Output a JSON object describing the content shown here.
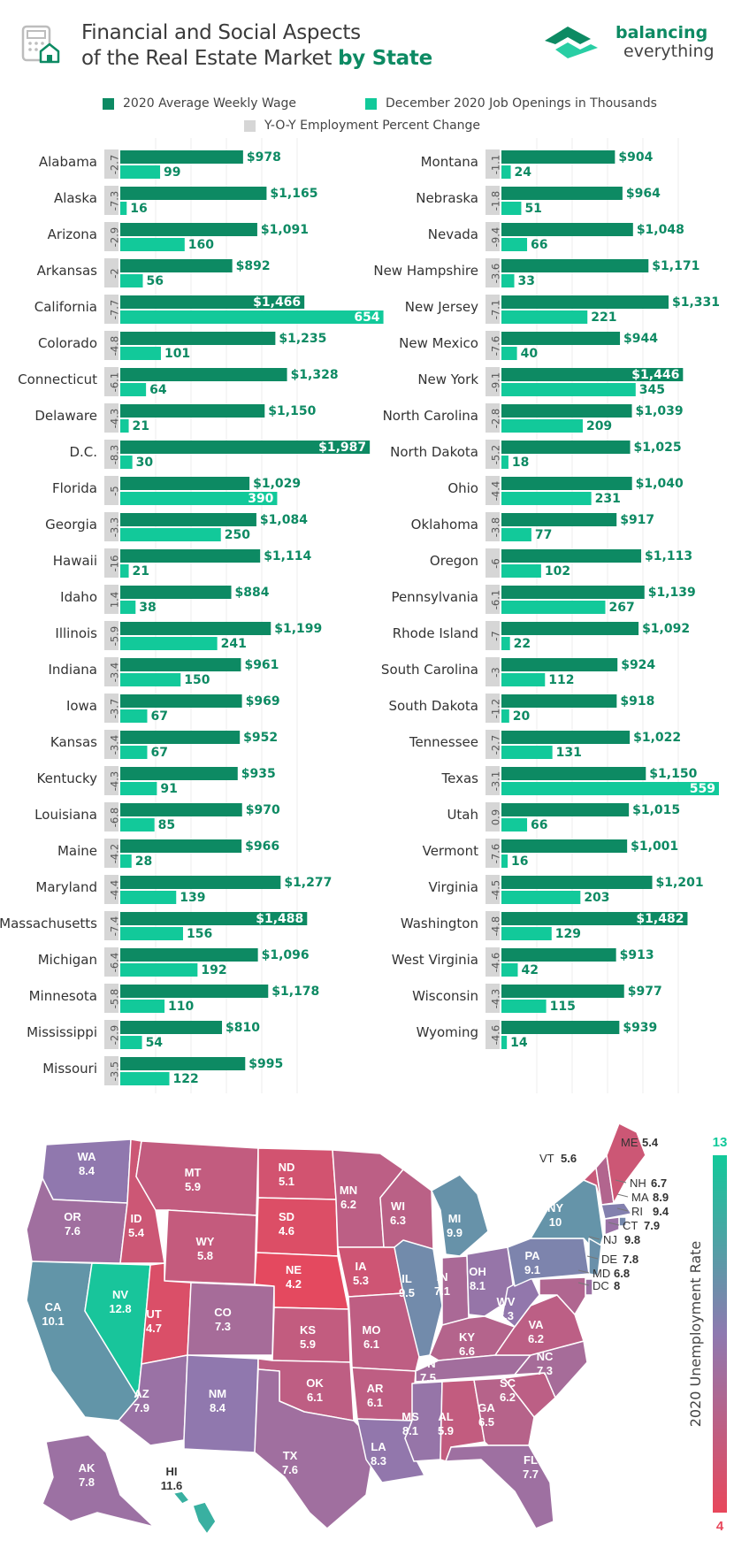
{
  "header": {
    "title_line1": "Financial and Social Aspects",
    "title_line2": "of the Real Estate Market ",
    "title_bold": "by State",
    "logo_line1": "balancing",
    "logo_line2": "everything"
  },
  "legend": [
    {
      "label": "2020 Average Weekly Wage",
      "color": "#0d8a63"
    },
    {
      "label": "December 2020 Job Openings in Thousands",
      "color": "#12c99a"
    },
    {
      "label": "Y-O-Y Employment Percent Change",
      "color": "#d6d6d6"
    }
  ],
  "colors": {
    "wage": "#0d8a63",
    "jobs": "#12c99a",
    "yoy_bg": "#d6d6d6",
    "wage_text": "#0d8a63",
    "jobs_text": "#0d8a63"
  },
  "chart_data": [
    {
      "type": "bar",
      "title": "Financial and Social Aspects of the Real Estate Market by State (left column)",
      "categories": [
        "Alabama",
        "Alaska",
        "Arizona",
        "Arkansas",
        "California",
        "Colorado",
        "Connecticut",
        "Delaware",
        "D.C.",
        "Florida",
        "Georgia",
        "Hawaii",
        "Idaho",
        "Illinois",
        "Indiana",
        "Iowa",
        "Kansas",
        "Kentucky",
        "Louisiana",
        "Maine",
        "Maryland",
        "Massachusetts",
        "Michigan",
        "Minnesota",
        "Mississippi",
        "Missouri"
      ],
      "series": [
        {
          "name": "2020 Average Weekly Wage",
          "values": [
            978,
            1165,
            1091,
            892,
            1466,
            1235,
            1328,
            1150,
            1987,
            1029,
            1084,
            1114,
            884,
            1199,
            961,
            969,
            952,
            935,
            970,
            966,
            1277,
            1488,
            1096,
            1178,
            810,
            995
          ],
          "labels": [
            "$978",
            "$1,165",
            "$1,091",
            "$892",
            "$1,466",
            "$1,235",
            "$1,328",
            "$1,150",
            "$1,987",
            "$1,029",
            "$1,084",
            "$1,114",
            "$884",
            "$1,199",
            "$961",
            "$969",
            "$952",
            "$935",
            "$970",
            "$966",
            "$1,277",
            "$1,488",
            "$1,096",
            "$1,178",
            "$810",
            "$995"
          ]
        },
        {
          "name": "December 2020 Job Openings in Thousands",
          "values": [
            99,
            16,
            160,
            56,
            654,
            101,
            64,
            21,
            30,
            390,
            250,
            21,
            38,
            241,
            150,
            67,
            67,
            91,
            85,
            28,
            139,
            156,
            192,
            110,
            54,
            122
          ],
          "labels": [
            "99",
            "16",
            "160",
            "56",
            "654",
            "101",
            "64",
            "21",
            "30",
            "390",
            "250",
            "21",
            "38",
            "241",
            "150",
            "67",
            "67",
            "91",
            "85",
            "28",
            "139",
            "156",
            "192",
            "110",
            "54",
            "122"
          ]
        },
        {
          "name": "Y-O-Y Employment Percent Change",
          "values": [
            -2.7,
            -7.3,
            -2.9,
            -2,
            -7.7,
            -4.8,
            -6.1,
            -4.3,
            -8.3,
            -5,
            -3.3,
            -16,
            1.4,
            -5.9,
            -3.4,
            -3.7,
            -3.4,
            -4.3,
            -6.8,
            -4.2,
            -4.4,
            -7.4,
            -6.4,
            -5.8,
            -2.9,
            -3.5
          ],
          "labels": [
            "-2.7",
            "-7.3",
            "-2.9",
            "-2",
            "-7.7",
            "-4.8",
            "-6.1",
            "-4.3",
            "-8.3",
            "-5",
            "-3.3",
            "-16",
            "1.4",
            "-5.9",
            "-3.4",
            "-3.7",
            "-3.4",
            "-4.3",
            "-6.8",
            "-4.2",
            "-4.4",
            "-7.4",
            "-6.4",
            "-5.8",
            "-2.9",
            "-3.5"
          ]
        }
      ]
    },
    {
      "type": "bar",
      "title": "Financial and Social Aspects of the Real Estate Market by State (right column)",
      "categories": [
        "Montana",
        "Nebraska",
        "Nevada",
        "New Hampshire",
        "New Jersey",
        "New Mexico",
        "New York",
        "North Carolina",
        "North Dakota",
        "Ohio",
        "Oklahoma",
        "Oregon",
        "Pennsylvania",
        "Rhode Island",
        "South Carolina",
        "South Dakota",
        "Tennessee",
        "Texas",
        "Utah",
        "Vermont",
        "Virginia",
        "Washington",
        "West Virginia",
        "Wisconsin",
        "Wyoming"
      ],
      "series": [
        {
          "name": "2020 Average Weekly Wage",
          "values": [
            904,
            964,
            1048,
            1171,
            1331,
            944,
            1446,
            1039,
            1025,
            1040,
            917,
            1113,
            1139,
            1092,
            924,
            918,
            1022,
            1150,
            1015,
            1001,
            1201,
            1482,
            913,
            977,
            939
          ],
          "labels": [
            "$904",
            "$964",
            "$1,048",
            "$1,171",
            "$1,331",
            "$944",
            "$1,446",
            "$1,039",
            "$1,025",
            "$1,040",
            "$917",
            "$1,113",
            "$1,139",
            "$1,092",
            "$924",
            "$918",
            "$1,022",
            "$1,150",
            "$1,015",
            "$1,001",
            "$1,201",
            "$1,482",
            "$913",
            "$977",
            "$939"
          ]
        },
        {
          "name": "December 2020 Job Openings in Thousands",
          "values": [
            24,
            51,
            66,
            33,
            221,
            40,
            345,
            209,
            18,
            231,
            77,
            102,
            267,
            22,
            112,
            20,
            131,
            559,
            66,
            16,
            203,
            129,
            42,
            115,
            14
          ],
          "labels": [
            "24",
            "51",
            "66",
            "33",
            "221",
            "40",
            "345",
            "209",
            "18",
            "231",
            "77",
            "102",
            "267",
            "22",
            "112",
            "20",
            "131",
            "559",
            "66",
            "16",
            "203",
            "129",
            "42",
            "115",
            "14"
          ]
        },
        {
          "name": "Y-O-Y Employment Percent Change",
          "values": [
            -1.1,
            -1.8,
            -9.4,
            -3.6,
            -7.1,
            -7.6,
            -9.1,
            -2.8,
            -5.2,
            -4.4,
            -3.8,
            -6,
            -6.1,
            -7,
            -3,
            -1.2,
            -2.7,
            -3.1,
            0.9,
            -7.6,
            -4.5,
            -4.8,
            -4.6,
            -4.3,
            -4.6
          ],
          "labels": [
            "-1.1",
            "-1.8",
            "-9.4",
            "-3.6",
            "-7.1",
            "-7.6",
            "-9.1",
            "-2.8",
            "-5.2",
            "-4.4",
            "-3.8",
            "-6",
            "-6.1",
            "-7",
            "-3",
            "-1.2",
            "-2.7",
            "-3.1",
            "0.9",
            "-7.6",
            "-4.5",
            "-4.8",
            "-4.6",
            "-4.3",
            "-4.6"
          ]
        }
      ]
    },
    {
      "type": "heatmap",
      "title": "2020 Unemployment Rate",
      "colorbar": {
        "label": "2020 Unemployment Rate",
        "min": 4,
        "max": 13,
        "min_label": "4",
        "max_label": "13",
        "low_color": "#e8475b",
        "mid_color": "#8e79b0",
        "high_color": "#12c99a"
      },
      "regions": [
        {
          "code": "WA",
          "value": 8.4,
          "label": "8.4"
        },
        {
          "code": "OR",
          "value": 7.6,
          "label": "7.6"
        },
        {
          "code": "CA",
          "value": 10.1,
          "label": "10.1"
        },
        {
          "code": "NV",
          "value": 12.8,
          "label": "12.8"
        },
        {
          "code": "ID",
          "value": 5.4,
          "label": "5.4"
        },
        {
          "code": "MT",
          "value": 5.9,
          "label": "5.9"
        },
        {
          "code": "WY",
          "value": 5.8,
          "label": "5.8"
        },
        {
          "code": "UT",
          "value": 4.7,
          "label": "4.7"
        },
        {
          "code": "CO",
          "value": 7.3,
          "label": "7.3"
        },
        {
          "code": "AZ",
          "value": 7.9,
          "label": "7.9"
        },
        {
          "code": "NM",
          "value": 8.4,
          "label": "8.4"
        },
        {
          "code": "ND",
          "value": 5.1,
          "label": "5.1"
        },
        {
          "code": "SD",
          "value": 4.6,
          "label": "4.6"
        },
        {
          "code": "NE",
          "value": 4.2,
          "label": "4.2"
        },
        {
          "code": "KS",
          "value": 5.9,
          "label": "5.9"
        },
        {
          "code": "OK",
          "value": 6.1,
          "label": "6.1"
        },
        {
          "code": "TX",
          "value": 7.6,
          "label": "7.6"
        },
        {
          "code": "MN",
          "value": 6.2,
          "label": "6.2"
        },
        {
          "code": "IA",
          "value": 5.3,
          "label": "5.3"
        },
        {
          "code": "MO",
          "value": 6.1,
          "label": "6.1"
        },
        {
          "code": "AR",
          "value": 6.1,
          "label": "6.1"
        },
        {
          "code": "LA",
          "value": 8.3,
          "label": "8.3"
        },
        {
          "code": "WI",
          "value": 6.3,
          "label": "6.3"
        },
        {
          "code": "IL",
          "value": 9.5,
          "label": "9.5"
        },
        {
          "code": "MI",
          "value": 9.9,
          "label": "9.9"
        },
        {
          "code": "IN",
          "value": 7.1,
          "label": "7.1"
        },
        {
          "code": "OH",
          "value": 8.1,
          "label": "8.1"
        },
        {
          "code": "KY",
          "value": 6.6,
          "label": "6.6"
        },
        {
          "code": "TN",
          "value": 7.5,
          "label": "7.5"
        },
        {
          "code": "MS",
          "value": 8.1,
          "label": "8.1"
        },
        {
          "code": "AL",
          "value": 5.9,
          "label": "5.9"
        },
        {
          "code": "GA",
          "value": 6.5,
          "label": "6.5"
        },
        {
          "code": "FL",
          "value": 7.7,
          "label": "7.7"
        },
        {
          "code": "SC",
          "value": 6.2,
          "label": "6.2"
        },
        {
          "code": "NC",
          "value": 7.3,
          "label": "7.3"
        },
        {
          "code": "VA",
          "value": 6.2,
          "label": "6.2"
        },
        {
          "code": "WV",
          "value": 8.3,
          "label": "8.3"
        },
        {
          "code": "PA",
          "value": 9.1,
          "label": "9.1"
        },
        {
          "code": "NY",
          "value": 10,
          "label": "10"
        },
        {
          "code": "VT",
          "value": 5.6,
          "label": "5.6"
        },
        {
          "code": "NH",
          "value": 6.7,
          "label": "6.7"
        },
        {
          "code": "ME",
          "value": 5.4,
          "label": "5.4"
        },
        {
          "code": "MA",
          "value": 8.9,
          "label": "8.9"
        },
        {
          "code": "RI",
          "value": 9.4,
          "label": "9.4"
        },
        {
          "code": "CT",
          "value": 7.9,
          "label": "7.9"
        },
        {
          "code": "NJ",
          "value": 9.8,
          "label": "9.8"
        },
        {
          "code": "DE",
          "value": 7.8,
          "label": "7.8"
        },
        {
          "code": "MD",
          "value": 6.8,
          "label": "6.8"
        },
        {
          "code": "DC",
          "value": 8,
          "label": "8"
        },
        {
          "code": "AK",
          "value": 7.8,
          "label": "7.8"
        },
        {
          "code": "HI",
          "value": 11.6,
          "label": "11.6"
        }
      ]
    }
  ]
}
